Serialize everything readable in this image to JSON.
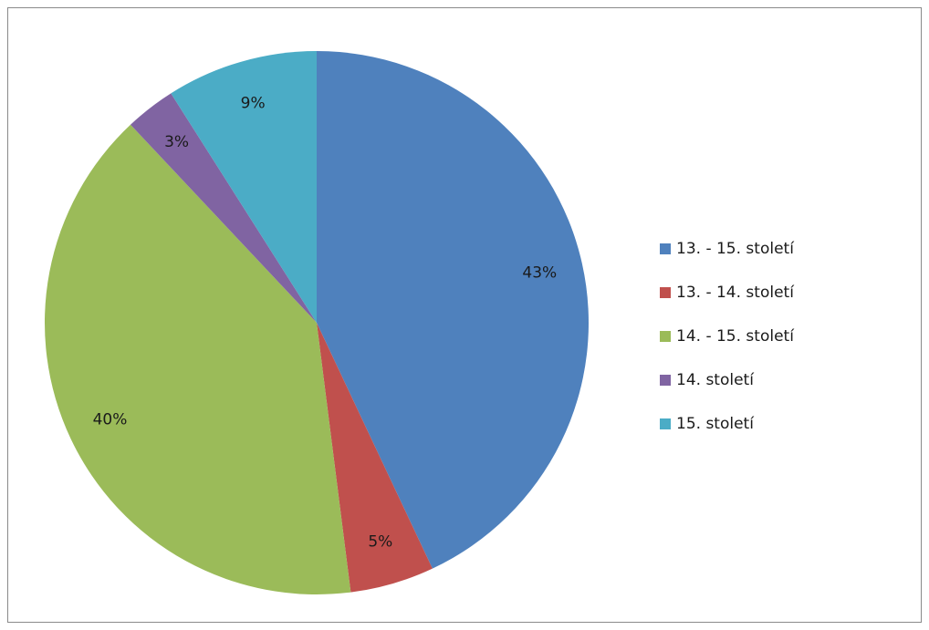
{
  "chart_data": {
    "type": "pie",
    "title": "",
    "legend_position": "right",
    "categories": [
      "13. - 15. století",
      "13. - 14. století",
      "14. - 15. století",
      "14. století",
      "15. století"
    ],
    "values": [
      43,
      5,
      40,
      3,
      9
    ],
    "labels": [
      "43%",
      "5%",
      "40%",
      "3%",
      "9%"
    ],
    "colors": [
      "#4F81BD",
      "#C0504D",
      "#9BBB59",
      "#8064A2",
      "#4BACC6"
    ]
  }
}
